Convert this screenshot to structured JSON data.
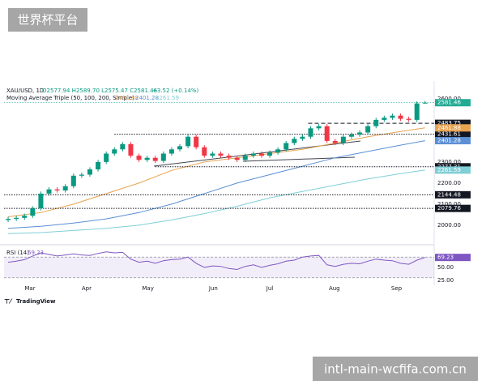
{
  "watermark": "世界杯平台",
  "footer_watermark": "intl-main-wcfifa.com.cn",
  "brand": "TradingView",
  "chart_data": [
    {
      "type": "candlestick",
      "symbol": "XAU/USD, 1D",
      "ohlc_text": "O2577.94 H2589.70 L2575.47 C2581.46",
      "change_text": "+3.52 (+0.14%)",
      "indicator": "Moving Average Triple (50, 100, 200, Simple)",
      "x": [
        0,
        1,
        2,
        3,
        4,
        5,
        6,
        7,
        8,
        9,
        10,
        11,
        12,
        13,
        14,
        15,
        16,
        17,
        18,
        19,
        20,
        21,
        22,
        23,
        24,
        25,
        26,
        27,
        28,
        29,
        30,
        31,
        32,
        33,
        34,
        35,
        36,
        37,
        38,
        39,
        40,
        41,
        42,
        43,
        44,
        45,
        46,
        47,
        48,
        49,
        50,
        51
      ],
      "open": [
        2025,
        2030,
        2035,
        2045,
        2080,
        2150,
        2170,
        2165,
        2185,
        2235,
        2240,
        2265,
        2300,
        2340,
        2360,
        2385,
        2330,
        2310,
        2320,
        2305,
        2340,
        2360,
        2375,
        2420,
        2370,
        2330,
        2340,
        2330,
        2320,
        2310,
        2330,
        2340,
        2330,
        2345,
        2360,
        2390,
        2410,
        2420,
        2460,
        2470,
        2400,
        2390,
        2420,
        2430,
        2440,
        2470,
        2500,
        2510,
        2520,
        2505,
        2500,
        2577.94
      ],
      "high": [
        2040,
        2045,
        2055,
        2090,
        2160,
        2180,
        2180,
        2195,
        2245,
        2250,
        2275,
        2310,
        2350,
        2370,
        2395,
        2395,
        2340,
        2330,
        2330,
        2350,
        2370,
        2385,
        2430,
        2430,
        2380,
        2350,
        2350,
        2340,
        2330,
        2340,
        2350,
        2350,
        2355,
        2370,
        2400,
        2420,
        2430,
        2470,
        2480,
        2480,
        2410,
        2430,
        2440,
        2450,
        2480,
        2510,
        2520,
        2530,
        2530,
        2515,
        2588,
        2589.7
      ],
      "low": [
        2015,
        2020,
        2025,
        2035,
        2070,
        2140,
        2155,
        2155,
        2175,
        2225,
        2230,
        2255,
        2290,
        2330,
        2350,
        2320,
        2300,
        2300,
        2295,
        2295,
        2330,
        2350,
        2365,
        2360,
        2320,
        2320,
        2320,
        2310,
        2300,
        2300,
        2320,
        2320,
        2320,
        2335,
        2350,
        2380,
        2400,
        2410,
        2450,
        2390,
        2380,
        2380,
        2410,
        2420,
        2430,
        2460,
        2490,
        2500,
        2495,
        2490,
        2490,
        2575.47
      ],
      "close": [
        2030,
        2035,
        2045,
        2080,
        2150,
        2170,
        2165,
        2185,
        2235,
        2240,
        2265,
        2300,
        2340,
        2360,
        2385,
        2330,
        2310,
        2320,
        2305,
        2340,
        2360,
        2375,
        2420,
        2370,
        2330,
        2340,
        2330,
        2320,
        2310,
        2330,
        2340,
        2330,
        2345,
        2360,
        2390,
        2410,
        2420,
        2460,
        2470,
        2400,
        2390,
        2420,
        2430,
        2440,
        2470,
        2500,
        2510,
        2520,
        2505,
        2500,
        2578,
        2581.46
      ],
      "up_color": "#089981",
      "down_color": "#f23645",
      "last_color": "#22ab94",
      "level_color": "#131722",
      "moving_averages": [
        {
          "color": "#e8a34f",
          "x": [
            0,
            4,
            8,
            12,
            16,
            20,
            24,
            28,
            32,
            36,
            40,
            44,
            48,
            51
          ],
          "values": [
            2040,
            2060,
            2100,
            2150,
            2200,
            2260,
            2300,
            2320,
            2340,
            2360,
            2390,
            2420,
            2445,
            2461.88
          ]
        },
        {
          "color": "#5b8fd6",
          "x": [
            0,
            4,
            8,
            12,
            16,
            20,
            24,
            28,
            32,
            36,
            40,
            44,
            48,
            51
          ],
          "values": [
            1985,
            1995,
            2010,
            2030,
            2060,
            2100,
            2150,
            2200,
            2240,
            2280,
            2320,
            2350,
            2380,
            2401.28
          ]
        },
        {
          "color": "#7fcfd6",
          "x": [
            0,
            4,
            8,
            12,
            16,
            20,
            24,
            28,
            32,
            36,
            40,
            44,
            48,
            51
          ],
          "values": [
            1960,
            1965,
            1975,
            1985,
            2000,
            2025,
            2055,
            2090,
            2130,
            2160,
            2190,
            2220,
            2245,
            2261.59
          ]
        }
      ],
      "levels": [
        {
          "value": 2483.75,
          "from": 36.7,
          "style": "dashed"
        },
        {
          "value": 2431.61,
          "from": 13,
          "style": "dotted"
        },
        {
          "value": 2277.31,
          "from": 18,
          "style": "dotted"
        },
        {
          "value": 2144.48,
          "from": -0.5,
          "style": "dotted"
        },
        {
          "value": 2079.76,
          "from": -0.5,
          "style": "dotted"
        }
      ],
      "xlim": [
        -0.5,
        53
      ],
      "xticks": [
        {
          "value": 2.67,
          "label": "Mar"
        },
        {
          "value": 9.6,
          "label": "Apr"
        },
        {
          "value": 17.1,
          "label": "May"
        },
        {
          "value": 25.1,
          "label": "Jun"
        },
        {
          "value": 32,
          "label": "Jul"
        },
        {
          "value": 39.9,
          "label": "Aug"
        },
        {
          "value": 47.5,
          "label": "Sep"
        }
      ],
      "ylim": [
        1915,
        2665
      ],
      "yticks": [
        {
          "value": 2000,
          "label": "2000.00"
        },
        {
          "value": 2100,
          "label": "2100.00"
        },
        {
          "value": 2200,
          "label": "2200.00"
        },
        {
          "value": 2300,
          "label": "2300.00"
        },
        {
          "value": 2600,
          "label": "2600.00"
        }
      ]
    },
    {
      "type": "line",
      "title": "RSI (14)",
      "color": "#7e57c2",
      "x": [
        0,
        1,
        2,
        3,
        4,
        5,
        6,
        7,
        8,
        9,
        10,
        11,
        12,
        13,
        14,
        15,
        16,
        17,
        18,
        19,
        20,
        21,
        22,
        23,
        24,
        25,
        26,
        27,
        28,
        29,
        30,
        31,
        32,
        33,
        34,
        35,
        36,
        37,
        38,
        39,
        40,
        41,
        42,
        43,
        44,
        45,
        46,
        47,
        48,
        49,
        50,
        51
      ],
      "values": [
        60,
        62,
        65,
        72,
        78,
        75,
        72,
        74,
        76,
        74,
        73,
        77,
        80,
        78,
        79,
        66,
        60,
        62,
        58,
        63,
        65,
        66,
        70,
        58,
        50,
        53,
        52,
        48,
        46,
        52,
        55,
        50,
        54,
        57,
        62,
        64,
        70,
        72,
        73,
        55,
        52,
        56,
        58,
        57,
        62,
        66,
        64,
        63,
        58,
        56,
        64,
        69.23
      ],
      "band": [
        30,
        70
      ],
      "ylim": [
        18.75,
        89
      ],
      "yticks": [
        {
          "value": 50,
          "label": "50.00"
        },
        {
          "value": 25,
          "label": "25.00"
        }
      ]
    }
  ]
}
